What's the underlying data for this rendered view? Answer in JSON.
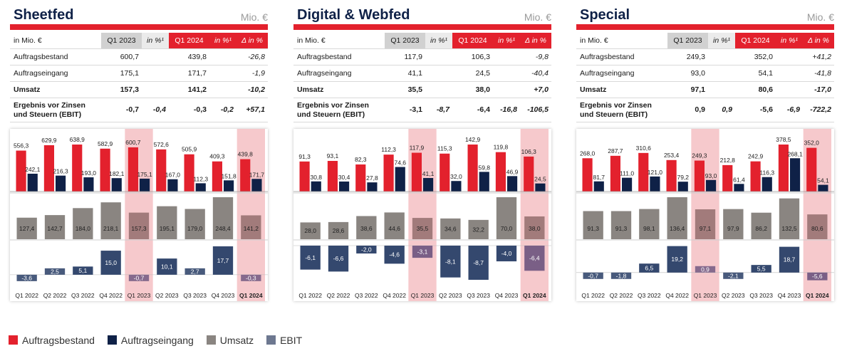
{
  "panels": [
    {
      "title": "Sheetfed",
      "unit": "Mio. €",
      "table": {
        "headers": [
          "in Mio. €",
          "Q1 2023",
          "in %¹",
          "Q1 2024",
          "in %¹",
          "Δ in %"
        ],
        "rows": [
          {
            "label": "Auftragsbestand",
            "c1": "600,7",
            "c2": "",
            "c3": "439,8",
            "c4": "",
            "c5": "-26,8"
          },
          {
            "label": "Auftragseingang",
            "c1": "175,1",
            "c2": "",
            "c3": "171,7",
            "c4": "",
            "c5": "-1,9"
          },
          {
            "label": "Umsatz",
            "c1": "157,3",
            "c2": "",
            "c3": "141,2",
            "c4": "",
            "c5": "-10,2"
          },
          {
            "label1": "Ergebnis vor Zinsen",
            "label2": "und Steuern (EBIT)",
            "c1": "-0,7",
            "c2": "-0,4",
            "c3": "-0,3",
            "c4": "-0,2",
            "c5": "+57,1"
          }
        ]
      }
    },
    {
      "title": "Digital & Webfed",
      "unit": "Mio. €",
      "table": {
        "headers": [
          "in Mio. €",
          "Q1 2023",
          "in %¹",
          "Q1 2024",
          "in %¹",
          "Δ in %"
        ],
        "rows": [
          {
            "label": "Auftragsbestand",
            "c1": "117,9",
            "c2": "",
            "c3": "106,3",
            "c4": "",
            "c5": "-9,8"
          },
          {
            "label": "Auftragseingang",
            "c1": "41,1",
            "c2": "",
            "c3": "24,5",
            "c4": "",
            "c5": "-40,4"
          },
          {
            "label": "Umsatz",
            "c1": "35,5",
            "c2": "",
            "c3": "38,0",
            "c4": "",
            "c5": "+7,0"
          },
          {
            "label1": "Ergebnis vor Zinsen",
            "label2": "und Steuern (EBIT)",
            "c1": "-3,1",
            "c2": "-8,7",
            "c3": "-6,4",
            "c4": "-16,8",
            "c5": "-106,5"
          }
        ]
      }
    },
    {
      "title": "Special",
      "unit": "Mio. €",
      "table": {
        "headers": [
          "in Mio. €",
          "Q1 2023",
          "in %¹",
          "Q1 2024",
          "in %¹",
          "Δ in %"
        ],
        "rows": [
          {
            "label": "Auftragsbestand",
            "c1": "249,3",
            "c2": "",
            "c3": "352,0",
            "c4": "",
            "c5": "+41,2"
          },
          {
            "label": "Auftragseingang",
            "c1": "93,0",
            "c2": "",
            "c3": "54,1",
            "c4": "",
            "c5": "-41,8"
          },
          {
            "label": "Umsatz",
            "c1": "97,1",
            "c2": "",
            "c3": "80,6",
            "c4": "",
            "c5": "-17,0"
          },
          {
            "label1": "Ergebnis vor Zinsen",
            "label2": "und Steuern (EBIT)",
            "c1": "0,9",
            "c2": "0,9",
            "c3": "-5,6",
            "c4": "-6,9",
            "c5": "-722,2"
          }
        ]
      }
    }
  ],
  "legend": {
    "order": "Auftragsbestand",
    "intake": "Auftragseingang",
    "sales": "Umsatz",
    "ebit": "EBIT"
  },
  "colors": {
    "brand_red": "#e3212d",
    "navy": "#0f2147",
    "gray": "#8a8581",
    "ebit": "#34486e",
    "highlight": "#f6c9cc",
    "unit_gray": "#9a9a9a"
  },
  "chart_data": [
    {
      "type": "bar",
      "title": "Sheetfed",
      "categories": [
        "Q1 2022",
        "Q2 2022",
        "Q3 2022",
        "Q4 2022",
        "Q1 2023",
        "Q2 2023",
        "Q3 2023",
        "Q4 2023",
        "Q1 2024"
      ],
      "highlighted": [
        "Q1 2023",
        "Q1 2024"
      ],
      "series": [
        {
          "name": "Auftragsbestand",
          "values": [
            556.3,
            629.9,
            638.9,
            582.9,
            600.7,
            572.6,
            505.9,
            409.3,
            439.8
          ],
          "labels": [
            "556,3",
            "629,9",
            "638,9",
            "582,9",
            "600,7",
            "572,6",
            "505,9",
            "409,3",
            "439,8"
          ]
        },
        {
          "name": "Auftragseingang",
          "values": [
            242.1,
            216.3,
            193.0,
            182.1,
            175.1,
            167.0,
            112.3,
            151.8,
            171.7
          ],
          "labels": [
            "242,1",
            "216,3",
            "193,0",
            "182,1",
            "175,1",
            "167,0",
            "112,3",
            "151,8",
            "171,7"
          ]
        },
        {
          "name": "Umsatz",
          "values": [
            127.4,
            142.7,
            184.0,
            218.1,
            157.3,
            195.1,
            179.0,
            248.4,
            141.2
          ],
          "labels": [
            "127,4",
            "142,7",
            "184,0",
            "218,1",
            "157,3",
            "195,1",
            "179,0",
            "248,4",
            "141,2"
          ]
        },
        {
          "name": "EBIT",
          "values": [
            -3.6,
            2.5,
            5.1,
            15.0,
            -0.7,
            10.1,
            2.7,
            17.7,
            -0.3
          ],
          "labels": [
            "-3,6",
            "2,5",
            "5,1",
            "15,0",
            "-0,7",
            "10,1",
            "2,7",
            "17,7",
            "-0,3"
          ]
        }
      ]
    },
    {
      "type": "bar",
      "title": "Digital & Webfed",
      "categories": [
        "Q1 2022",
        "Q2 2022",
        "Q3 2022",
        "Q4 2022",
        "Q1 2023",
        "Q2 2023",
        "Q3 2023",
        "Q4 2023",
        "Q1 2024"
      ],
      "highlighted": [
        "Q1 2023",
        "Q1 2024"
      ],
      "series": [
        {
          "name": "Auftragsbestand",
          "values": [
            91.3,
            93.1,
            82.3,
            112.3,
            117.9,
            115.3,
            142.9,
            119.8,
            106.3
          ],
          "labels": [
            "91,3",
            "93,1",
            "82,3",
            "112,3",
            "117,9",
            "115,3",
            "142,9",
            "119,8",
            "106,3"
          ]
        },
        {
          "name": "Auftragseingang",
          "values": [
            30.8,
            30.4,
            27.8,
            74.6,
            41.1,
            32.0,
            59.8,
            46.9,
            24.5
          ],
          "labels": [
            "30,8",
            "30,4",
            "27,8",
            "74,6",
            "41,1",
            "32,0",
            "59,8",
            "46,9",
            "24,5"
          ]
        },
        {
          "name": "Umsatz",
          "values": [
            28.0,
            28.6,
            38.6,
            44.6,
            35.5,
            34.6,
            32.2,
            70.0,
            38.0
          ],
          "labels": [
            "28,0",
            "28,6",
            "38,6",
            "44,6",
            "35,5",
            "34,6",
            "32,2",
            "70,0",
            "38,0"
          ]
        },
        {
          "name": "EBIT",
          "values": [
            -6.1,
            -6.6,
            -2.0,
            -4.6,
            -3.1,
            -8.1,
            -8.7,
            -4.0,
            -6.4
          ],
          "labels": [
            "-6,1",
            "-6,6",
            "-2,0",
            "-4,6",
            "-3,1",
            "-8,1",
            "-8,7",
            "-4,0",
            "-6,4"
          ]
        }
      ]
    },
    {
      "type": "bar",
      "title": "Special",
      "categories": [
        "Q1 2022",
        "Q2 2022",
        "Q3 2022",
        "Q4 2022",
        "Q1 2023",
        "Q2 2023",
        "Q3 2023",
        "Q4 2023",
        "Q1 2024"
      ],
      "highlighted": [
        "Q1 2023",
        "Q1 2024"
      ],
      "series": [
        {
          "name": "Auftragsbestand",
          "values": [
            268.0,
            287.7,
            310.6,
            253.4,
            249.3,
            212.8,
            242.9,
            378.5,
            352.0
          ],
          "labels": [
            "268,0",
            "287,7",
            "310,6",
            "253,4",
            "249,3",
            "212,8",
            "242,9",
            "378,5",
            "352,0"
          ]
        },
        {
          "name": "Auftragseingang",
          "values": [
            81.7,
            111.0,
            121.0,
            79.2,
            93.0,
            61.4,
            116.3,
            268.1,
            54.1
          ],
          "labels": [
            "81,7",
            "111,0",
            "121,0",
            "79,2",
            "93,0",
            "61,4",
            "116,3",
            "268,1",
            "54,1"
          ]
        },
        {
          "name": "Umsatz",
          "values": [
            91.3,
            91.3,
            98.1,
            136.4,
            97.1,
            97.9,
            86.2,
            132.5,
            80.6
          ],
          "labels": [
            "91,3",
            "91,3",
            "98,1",
            "136,4",
            "97,1",
            "97,9",
            "86,2",
            "132,5",
            "80,6"
          ]
        },
        {
          "name": "EBIT",
          "values": [
            -0.7,
            -1.8,
            6.5,
            19.2,
            0.9,
            -2.1,
            5.5,
            18.7,
            -5.6
          ],
          "labels": [
            "-0,7",
            "-1,8",
            "6,5",
            "19,2",
            "0,9",
            "-2,1",
            "5,5",
            "18,7",
            "-5,6"
          ]
        }
      ]
    }
  ]
}
